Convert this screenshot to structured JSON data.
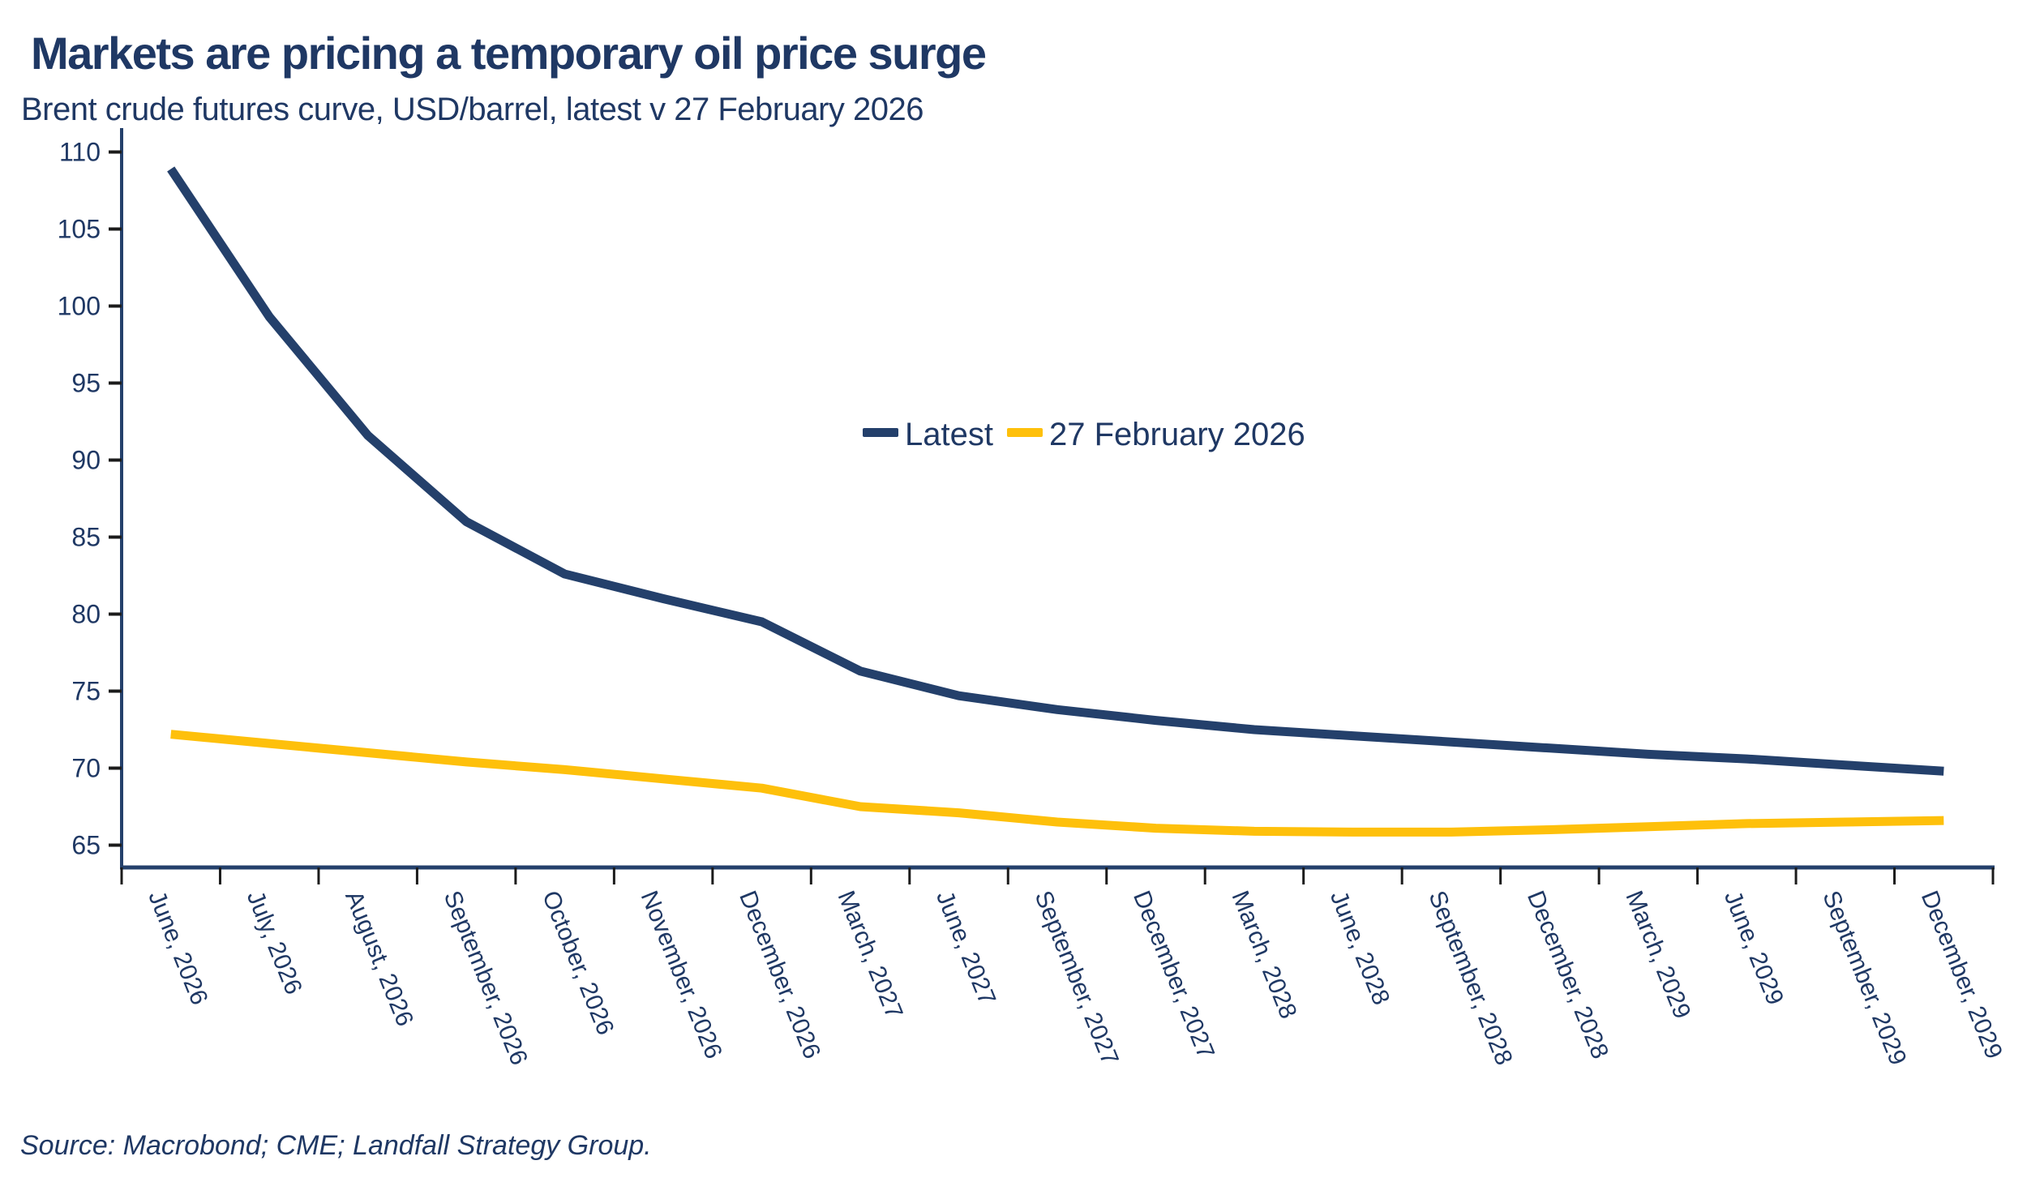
{
  "header": {
    "title": "Markets are pricing a temporary oil price surge",
    "subtitle": "Brent crude futures curve, USD/barrel, latest v 27 February 2026"
  },
  "footer": {
    "source": "Source: Macrobond; CME; Landfall Strategy Group."
  },
  "colors": {
    "navy": "#24406B",
    "yellow": "#FEC00B",
    "text_navy": "#1F3864",
    "tick_black": "#1b1b1b",
    "background": "#ffffff"
  },
  "chart_data": {
    "type": "line",
    "title": "Markets are pricing a temporary oil price surge",
    "subtitle": "Brent crude futures curve, USD/barrel, latest v 27 February 2026",
    "xlabel": "",
    "ylabel": "USD/barrel",
    "ylim": [
      65,
      110
    ],
    "y_ticks": [
      65,
      70,
      75,
      80,
      85,
      90,
      95,
      100,
      105,
      110
    ],
    "grid": false,
    "legend_position": "center of plot area",
    "x_label_rotation_deg": 68,
    "categories": [
      "June, 2026",
      "July, 2026",
      "August, 2026",
      "September, 2026",
      "October, 2026",
      "November, 2026",
      "December, 2026",
      "March, 2027",
      "June, 2027",
      "September, 2027",
      "December, 2027",
      "March, 2028",
      "June, 2028",
      "September, 2028",
      "December, 2028",
      "March, 2029",
      "June, 2029",
      "September, 2029",
      "December, 2029"
    ],
    "series": [
      {
        "name": "Latest",
        "color": "#24406B",
        "values": [
          108.9,
          99.3,
          91.6,
          86.0,
          82.6,
          81.0,
          79.5,
          76.3,
          74.7,
          73.8,
          73.1,
          72.5,
          72.1,
          71.7,
          71.3,
          70.9,
          70.6,
          70.2,
          69.8
        ]
      },
      {
        "name": "27 February 2026",
        "color": "#FEC00B",
        "values": [
          72.2,
          71.6,
          71.0,
          70.4,
          69.9,
          69.3,
          68.7,
          67.5,
          67.1,
          66.5,
          66.1,
          65.9,
          65.85,
          65.85,
          66.0,
          66.2,
          66.4,
          66.5,
          66.6
        ]
      }
    ]
  },
  "legend": {
    "latest_label": "Latest",
    "feb_label": "27 February 2026"
  }
}
